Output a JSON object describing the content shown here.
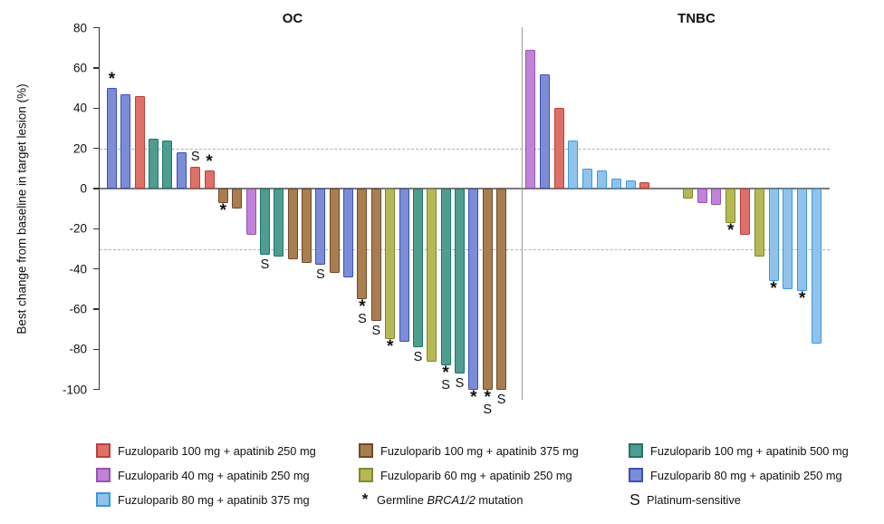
{
  "chart_data": {
    "type": "bar",
    "subtype": "waterfall",
    "ylabel": "Best change from baseline in target lesion (%)",
    "ylim": [
      -105,
      80
    ],
    "yticks": [
      80,
      60,
      40,
      20,
      0,
      -20,
      -40,
      -60,
      -80,
      -100
    ],
    "threshold_lines": [
      20,
      -30
    ],
    "grid": "off",
    "legend_position": "bottom",
    "marker_glyphs": {
      "brca": "*",
      "platinum": "S"
    },
    "groups": [
      {
        "title": "OC",
        "bars": [
          {
            "value": 50,
            "dose": "f80a250",
            "flags": [
              "brca"
            ]
          },
          {
            "value": 47,
            "dose": "f80a250",
            "flags": []
          },
          {
            "value": 46,
            "dose": "f100a250",
            "flags": []
          },
          {
            "value": 25,
            "dose": "f100a500",
            "flags": []
          },
          {
            "value": 24,
            "dose": "f100a500",
            "flags": []
          },
          {
            "value": 18,
            "dose": "f80a250",
            "flags": []
          },
          {
            "value": 11,
            "dose": "f100a250",
            "flags": [
              "platinum"
            ]
          },
          {
            "value": 9,
            "dose": "f100a250",
            "flags": [
              "brca"
            ]
          },
          {
            "value": -7,
            "dose": "f100a375",
            "flags": [
              "brca"
            ]
          },
          {
            "value": -10,
            "dose": "f100a375",
            "flags": []
          },
          {
            "value": -23,
            "dose": "f40a250",
            "flags": []
          },
          {
            "value": -33,
            "dose": "f100a500",
            "flags": [
              "platinum"
            ]
          },
          {
            "value": -34,
            "dose": "f100a500",
            "flags": []
          },
          {
            "value": -35,
            "dose": "f100a375",
            "flags": []
          },
          {
            "value": -37,
            "dose": "f100a375",
            "flags": []
          },
          {
            "value": -38,
            "dose": "f80a250",
            "flags": [
              "platinum"
            ]
          },
          {
            "value": -42,
            "dose": "f100a375",
            "flags": []
          },
          {
            "value": -44,
            "dose": "f80a250",
            "flags": []
          },
          {
            "value": -55,
            "dose": "f100a375",
            "flags": [
              "brca",
              "platinum"
            ]
          },
          {
            "value": -66,
            "dose": "f100a375",
            "flags": [
              "platinum"
            ]
          },
          {
            "value": -75,
            "dose": "f60a250",
            "flags": [
              "brca"
            ]
          },
          {
            "value": -76,
            "dose": "f80a250",
            "flags": []
          },
          {
            "value": -79,
            "dose": "f100a500",
            "flags": [
              "platinum"
            ]
          },
          {
            "value": -86,
            "dose": "f60a250",
            "flags": []
          },
          {
            "value": -88,
            "dose": "f100a500",
            "flags": [
              "brca",
              "platinum"
            ]
          },
          {
            "value": -92,
            "dose": "f100a500",
            "flags": [
              "platinum"
            ]
          },
          {
            "value": -100,
            "dose": "f80a250",
            "flags": [
              "brca"
            ]
          },
          {
            "value": -100,
            "dose": "f100a375",
            "flags": [
              "brca",
              "platinum"
            ]
          },
          {
            "value": -100,
            "dose": "f100a375",
            "flags": [
              "platinum"
            ]
          }
        ]
      },
      {
        "title": "TNBC",
        "bars": [
          {
            "value": 69,
            "dose": "f40a250",
            "flags": []
          },
          {
            "value": 57,
            "dose": "f80a250",
            "flags": []
          },
          {
            "value": 40,
            "dose": "f100a250",
            "flags": []
          },
          {
            "value": 24,
            "dose": "f80a375",
            "flags": []
          },
          {
            "value": 10,
            "dose": "f80a375",
            "flags": []
          },
          {
            "value": 9,
            "dose": "f80a375",
            "flags": []
          },
          {
            "value": 5,
            "dose": "f80a375",
            "flags": []
          },
          {
            "value": 4,
            "dose": "f80a375",
            "flags": []
          },
          {
            "value": 3,
            "dose": "f100a250",
            "flags": []
          },
          {
            "gap": true
          },
          {
            "gap": true
          },
          {
            "value": -5,
            "dose": "f60a250",
            "flags": []
          },
          {
            "value": -7,
            "dose": "f40a250",
            "flags": []
          },
          {
            "value": -8,
            "dose": "f40a250",
            "flags": []
          },
          {
            "value": -17,
            "dose": "f60a250",
            "flags": [
              "brca"
            ]
          },
          {
            "value": -23,
            "dose": "f100a250",
            "flags": []
          },
          {
            "value": -34,
            "dose": "f60a250",
            "flags": []
          },
          {
            "value": -46,
            "dose": "f80a375",
            "flags": [
              "brca"
            ]
          },
          {
            "value": -50,
            "dose": "f80a375",
            "flags": []
          },
          {
            "value": -51,
            "dose": "f80a375",
            "flags": [
              "brca"
            ]
          },
          {
            "value": -77,
            "dose": "f80a375",
            "flags": []
          }
        ]
      }
    ]
  },
  "colors": {
    "f100a250": {
      "fill": "#DD7168",
      "stroke": "#B9413A"
    },
    "f100a375": {
      "fill": "#A87E50",
      "stroke": "#70482A"
    },
    "f100a500": {
      "fill": "#4F9D90",
      "stroke": "#20756A"
    },
    "f40a250": {
      "fill": "#C182D9",
      "stroke": "#9752B8"
    },
    "f60a250": {
      "fill": "#B5B855",
      "stroke": "#82882C"
    },
    "f80a250": {
      "fill": "#7C8DD6",
      "stroke": "#3A50C0"
    },
    "f80a375": {
      "fill": "#8FC3EC",
      "stroke": "#3D97DB"
    }
  },
  "legend": {
    "items": [
      {
        "dose": "f100a250",
        "label": "Fuzuloparib 100 mg + apatinib 250 mg"
      },
      {
        "dose": "f100a375",
        "label": "Fuzuloparib 100 mg + apatinib 375 mg"
      },
      {
        "dose": "f100a500",
        "label": "Fuzuloparib 100 mg + apatinib 500 mg"
      },
      {
        "dose": "f40a250",
        "label": "Fuzuloparib 40 mg + apatinib 250 mg"
      },
      {
        "dose": "f60a250",
        "label": "Fuzuloparib 60 mg + apatinib 250 mg"
      },
      {
        "dose": "f80a250",
        "label": "Fuzuloparib 80 mg + apatinib 250 mg"
      },
      {
        "dose": "f80a375",
        "label": "Fuzuloparib 80 mg + apatinib 375 mg"
      },
      {
        "marker": "*",
        "label_prefix": "Germline ",
        "label_italic": "BRCA1/2",
        "label_suffix": " mutation"
      },
      {
        "marker": "S",
        "label": "Platinum-sensitive"
      }
    ]
  }
}
